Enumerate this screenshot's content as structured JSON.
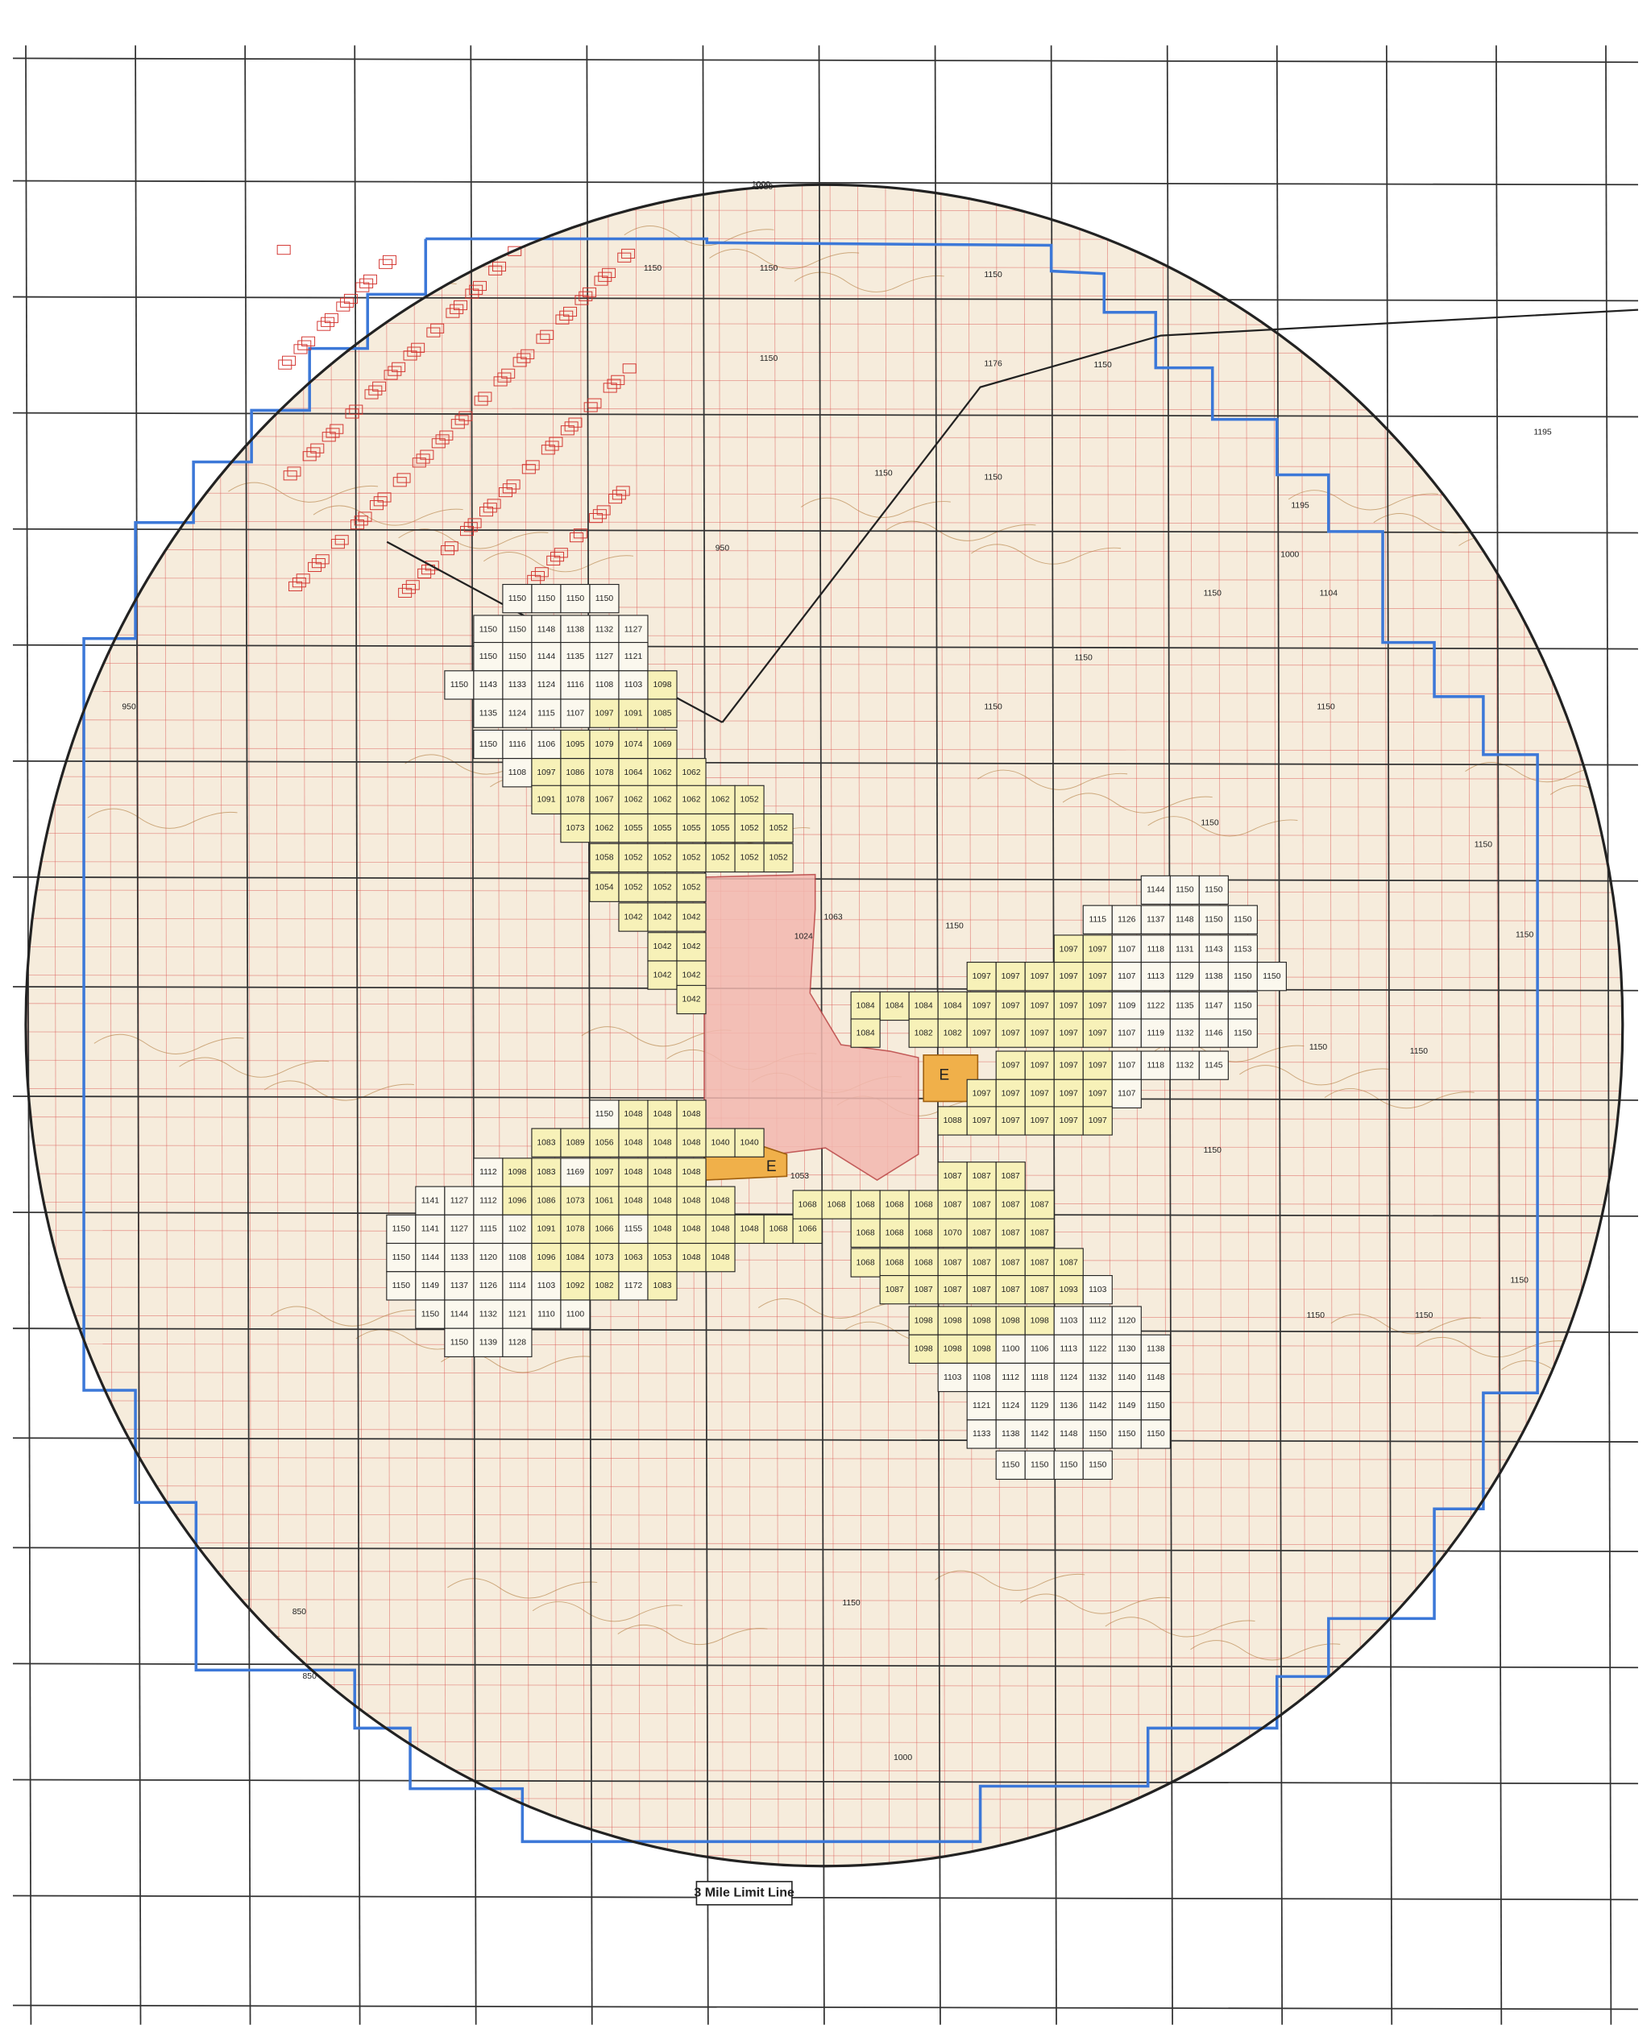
{
  "map": {
    "legend_label": "3 Mile Limit Line",
    "zone_labels": [
      "E",
      "E"
    ],
    "clusters": [
      {
        "rows": [
          [
            1150,
            1150,
            1150,
            1150
          ],
          [
            1150,
            1150,
            1148,
            1138,
            1132,
            1127
          ],
          [
            1150,
            1150,
            1144,
            1135,
            1127,
            1121
          ],
          [
            1150,
            1143,
            1133,
            1124,
            1116,
            1108,
            1103,
            1098
          ],
          [
            1135,
            1124,
            1115,
            1107,
            1097,
            1091,
            1085
          ],
          [
            1150,
            1116,
            1106,
            1095,
            1079,
            1074,
            1069
          ],
          [
            1108,
            1097,
            1086,
            1078,
            1064,
            1062,
            1062
          ],
          [
            1091,
            1078,
            1067,
            1062,
            1062,
            1062,
            1062,
            1052
          ],
          [
            1073,
            1062,
            1055,
            1055,
            1055,
            1055,
            1052,
            1052
          ],
          [
            1058,
            1052,
            1052,
            1052,
            1052,
            1052,
            1052
          ],
          [
            1054,
            1052,
            1052,
            1052
          ],
          [
            1042,
            1042,
            1042
          ],
          [
            1042,
            1042
          ],
          [
            1042,
            1042
          ],
          [
            1042
          ]
        ]
      },
      {
        "rows": [
          [
            1144,
            1150,
            1150
          ],
          [
            1115,
            1126,
            1137,
            1148,
            1150,
            1150
          ],
          [
            1097,
            1097,
            1107,
            1118,
            1131,
            1143,
            1153
          ],
          [
            1097,
            1097,
            1097,
            1097,
            1097,
            1107,
            1113,
            1129,
            1138,
            1150,
            1150
          ],
          [
            1084,
            1084,
            1084,
            1084,
            1097,
            1097,
            1097,
            1097,
            1097,
            1109,
            1122,
            1135,
            1147,
            1150
          ],
          [
            1084,
            null,
            1082,
            1082,
            1097,
            1097,
            1097,
            1097,
            1097,
            1107,
            1119,
            1132,
            1146,
            1150
          ],
          [
            1097,
            1097,
            1097,
            1097,
            1107,
            1118,
            1132,
            1145
          ],
          [
            1097,
            1097,
            1097,
            1097,
            1097,
            1107
          ],
          [
            1088,
            1097,
            1097,
            1097,
            1097,
            1097
          ]
        ]
      },
      {
        "rows": [
          [
            1150,
            1048,
            1048,
            1048
          ],
          [
            1083,
            1089,
            1056,
            1048,
            1048,
            1048,
            1040,
            1040
          ],
          [
            1112,
            1098,
            1083,
            1169,
            1097,
            1048,
            1048,
            1048
          ],
          [
            1141,
            1127,
            1112,
            1096,
            1086,
            1073,
            1061,
            1048,
            1048,
            1048,
            1048
          ],
          [
            1150,
            1141,
            1127,
            1115,
            1102,
            1091,
            1078,
            1066,
            1155,
            1048,
            1048,
            1048,
            1048,
            1068,
            1066
          ],
          [
            1150,
            1144,
            1133,
            1120,
            1108,
            1096,
            1084,
            1073,
            1063,
            1053,
            1048,
            1048
          ],
          [
            1150,
            1149,
            1137,
            1126,
            1114,
            1103,
            1092,
            1082,
            1172,
            1083
          ],
          [
            1150,
            1144,
            1132,
            1121,
            1110,
            1100
          ],
          [
            1150,
            1139,
            1128
          ]
        ]
      },
      {
        "rows": [
          [
            1087,
            1087,
            1087
          ],
          [
            1068,
            1068,
            1068,
            1068,
            1068,
            1087,
            1087,
            1087,
            1087
          ],
          [
            1068,
            1068,
            1068,
            1070,
            1087,
            1087,
            1087
          ],
          [
            1068,
            1068,
            1068,
            1087,
            1087,
            1087,
            1087,
            1087
          ],
          [
            1087,
            1087,
            1087,
            1087,
            1087,
            1087,
            1093,
            1103
          ],
          [
            1098,
            1098,
            1098,
            1098,
            1098,
            1103,
            1112,
            1120
          ],
          [
            1098,
            1098,
            1098,
            1100,
            1106,
            1113,
            1122,
            1130,
            1138
          ],
          [
            1103,
            1108,
            1112,
            1118,
            1124,
            1132,
            1140,
            1148
          ],
          [
            1121,
            1124,
            1129,
            1136,
            1142,
            1149,
            1150
          ],
          [
            1133,
            1138,
            1142,
            1148,
            1150,
            1150,
            1150
          ],
          [
            1150,
            1150,
            1150,
            1150
          ]
        ]
      }
    ],
    "scattered_labels": [
      "1080",
      "1150",
      "1150",
      "1150",
      "1150",
      "1176",
      "1195",
      "1195",
      "1150",
      "1150",
      "1150",
      "1104",
      "1150",
      "1150",
      "1150",
      "1150",
      "1150",
      "1150",
      "1150",
      "1150",
      "1150",
      "1150",
      "1150",
      "1150",
      "1150",
      "1000",
      "950",
      "850",
      "850",
      "1000",
      "1000",
      "950",
      "1053",
      "1063",
      "1024",
      "1150",
      "1150"
    ]
  }
}
